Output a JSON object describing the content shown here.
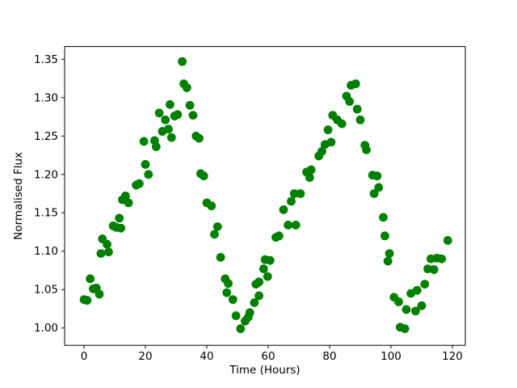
{
  "chart_data": {
    "type": "scatter",
    "title": "",
    "xlabel": "Time (Hours)",
    "ylabel": "Normalised Flux",
    "marker_color": "#008000",
    "marker_radius_px": 5.4,
    "grid": false,
    "legend": null,
    "xlim": [
      -6.32,
      124.21
    ],
    "ylim": [
      0.9774,
      1.3665
    ],
    "xticks": [
      0,
      20,
      40,
      60,
      80,
      100,
      120
    ],
    "xtick_labels": [
      "0",
      "20",
      "40",
      "60",
      "80",
      "100",
      "120"
    ],
    "yticks": [
      1.0,
      1.05,
      1.1,
      1.15,
      1.2,
      1.25,
      1.3,
      1.35
    ],
    "ytick_labels": [
      "1.00",
      "1.05",
      "1.10",
      "1.15",
      "1.20",
      "1.25",
      "1.30",
      "1.35"
    ],
    "x_name": "time_hours",
    "y_name": "normalised_flux",
    "points": [
      [
        0,
        1.037
      ],
      [
        1,
        1.036
      ],
      [
        2,
        1.064
      ],
      [
        3,
        1.051
      ],
      [
        4,
        1.052
      ],
      [
        5,
        1.044
      ],
      [
        5.5,
        1.097
      ],
      [
        6,
        1.116
      ],
      [
        7.5,
        1.109
      ],
      [
        8,
        1.099
      ],
      [
        9.5,
        1.133
      ],
      [
        10.5,
        1.131
      ],
      [
        11.5,
        1.143
      ],
      [
        12,
        1.13
      ],
      [
        12.5,
        1.167
      ],
      [
        13.5,
        1.172
      ],
      [
        14.5,
        1.163
      ],
      [
        17,
        1.186
      ],
      [
        18,
        1.188
      ],
      [
        19.5,
        1.243
      ],
      [
        20,
        1.213
      ],
      [
        21,
        1.2
      ],
      [
        23,
        1.244
      ],
      [
        23.5,
        1.236
      ],
      [
        24.5,
        1.28
      ],
      [
        25.5,
        1.256
      ],
      [
        26.5,
        1.271
      ],
      [
        27.5,
        1.259
      ],
      [
        28,
        1.291
      ],
      [
        28.5,
        1.248
      ],
      [
        29.5,
        1.276
      ],
      [
        30.5,
        1.278
      ],
      [
        32,
        1.347
      ],
      [
        32.5,
        1.318
      ],
      [
        33.5,
        1.313
      ],
      [
        34.5,
        1.29
      ],
      [
        35.5,
        1.277
      ],
      [
        36.5,
        1.25
      ],
      [
        37.5,
        1.247
      ],
      [
        38,
        1.201
      ],
      [
        39,
        1.198
      ],
      [
        40,
        1.163
      ],
      [
        41.5,
        1.159
      ],
      [
        42.5,
        1.122
      ],
      [
        43.5,
        1.132
      ],
      [
        44.5,
        1.092
      ],
      [
        46,
        1.064
      ],
      [
        46.5,
        1.046
      ],
      [
        47,
        1.058
      ],
      [
        48.5,
        1.037
      ],
      [
        49.5,
        1.016
      ],
      [
        51,
        0.999
      ],
      [
        52.5,
        1.009
      ],
      [
        53.5,
        1.014
      ],
      [
        54,
        1.02
      ],
      [
        55.5,
        1.033
      ],
      [
        56,
        1.057
      ],
      [
        57,
        1.06
      ],
      [
        57,
        1.042
      ],
      [
        58.5,
        1.077
      ],
      [
        59,
        1.089
      ],
      [
        59.8,
        1.067
      ],
      [
        60.6,
        1.088
      ],
      [
        62.5,
        1.118
      ],
      [
        63.5,
        1.12
      ],
      [
        65,
        1.154
      ],
      [
        66.5,
        1.134
      ],
      [
        69,
        1.134
      ],
      [
        67.5,
        1.165
      ],
      [
        68.5,
        1.175
      ],
      [
        70.5,
        1.175
      ],
      [
        72.5,
        1.203
      ],
      [
        73.5,
        1.196
      ],
      [
        74,
        1.206
      ],
      [
        76.5,
        1.224
      ],
      [
        77.5,
        1.23
      ],
      [
        78.5,
        1.239
      ],
      [
        79.5,
        1.258
      ],
      [
        80.5,
        1.242
      ],
      [
        81,
        1.277
      ],
      [
        82.5,
        1.271
      ],
      [
        84,
        1.266
      ],
      [
        85.5,
        1.302
      ],
      [
        86.5,
        1.295
      ],
      [
        87,
        1.316
      ],
      [
        88.5,
        1.318
      ],
      [
        89,
        1.285
      ],
      [
        90,
        1.271
      ],
      [
        91.5,
        1.238
      ],
      [
        92,
        1.232
      ],
      [
        94,
        1.199
      ],
      [
        95.5,
        1.198
      ],
      [
        94.5,
        1.175
      ],
      [
        96,
        1.183
      ],
      [
        97.5,
        1.144
      ],
      [
        98,
        1.12
      ],
      [
        99,
        1.087
      ],
      [
        99.5,
        1.097
      ],
      [
        101,
        1.04
      ],
      [
        102.5,
        1.034
      ],
      [
        103,
        1.001
      ],
      [
        104.5,
        0.999
      ],
      [
        105,
        1.024
      ],
      [
        106.5,
        1.045
      ],
      [
        108,
        1.022
      ],
      [
        108.5,
        1.049
      ],
      [
        110,
        1.029
      ],
      [
        111,
        1.057
      ],
      [
        112,
        1.077
      ],
      [
        113,
        1.09
      ],
      [
        114,
        1.076
      ],
      [
        115,
        1.091
      ],
      [
        116.5,
        1.09
      ],
      [
        118.5,
        1.114
      ]
    ]
  },
  "layout_note": ""
}
